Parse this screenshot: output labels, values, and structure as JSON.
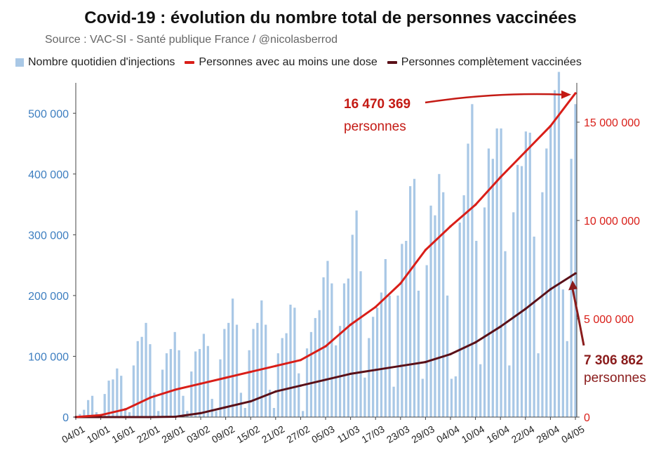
{
  "header": {
    "title": "Covid-19 : évolution du nombre total de personnes vaccinées",
    "source": "Source : VAC-SI - Santé publique France / @nicolasberrod"
  },
  "colors": {
    "bars": "#a9c8e6",
    "first_dose": "#d91e18",
    "full": "#5a1018",
    "left_axis": "#3d7ec0",
    "right_axis": "#d91e18",
    "annot_first": "#c41a14",
    "annot_full": "#8a1c1c"
  },
  "annotations": {
    "first_value": "16 470 369",
    "first_unit": "personnes",
    "full_value": "7 306 862",
    "full_unit": "personnes"
  },
  "chart_data": {
    "type": "bar+line",
    "title": "Covid-19 : évolution du nombre total de personnes vaccinées",
    "subtitle": "Source : VAC-SI - Santé publique France / @nicolasberrod",
    "legend": [
      {
        "label": "Nombre quotidien d'injections",
        "kind": "bar",
        "color": "#a9c8e6"
      },
      {
        "label": "Personnes avec au moins une dose",
        "kind": "line",
        "color": "#d91e18"
      },
      {
        "label": "Personnes complètement vaccinées",
        "kind": "line",
        "color": "#5a1018"
      }
    ],
    "legend_position": "top",
    "x_ticks": [
      "04/01",
      "10/01",
      "16/01",
      "22/01",
      "28/01",
      "03/02",
      "09/02",
      "15/02",
      "21/02",
      "27/02",
      "05/03",
      "11/03",
      "17/03",
      "23/03",
      "29/03",
      "04/04",
      "10/04",
      "16/04",
      "22/04",
      "28/04",
      "04/05"
    ],
    "left_axis": {
      "min": 0,
      "max": 550000,
      "ticks": [
        0,
        100000,
        200000,
        300000,
        400000,
        500000
      ],
      "tick_labels": [
        "0",
        "100 000",
        "200 000",
        "300 000",
        "400 000",
        "500 000"
      ]
    },
    "right_axis": {
      "min": 0,
      "max": 17000000,
      "ticks": [
        0,
        5000000,
        10000000,
        15000000
      ],
      "tick_labels": [
        "0",
        "5 000 000",
        "10 000 000",
        "15 000 000"
      ]
    },
    "daily_injections": [
      1000,
      5000,
      12000,
      28000,
      35000,
      8000,
      2000,
      38000,
      60000,
      62000,
      80000,
      68000,
      15000,
      8000,
      85000,
      125000,
      132000,
      155000,
      120000,
      40000,
      10000,
      78000,
      105000,
      112000,
      140000,
      110000,
      35000,
      10000,
      75000,
      108000,
      112000,
      137000,
      117000,
      30000,
      10000,
      95000,
      145000,
      155000,
      195000,
      152000,
      40000,
      15000,
      110000,
      145000,
      155000,
      192000,
      152000,
      45000,
      15000,
      105000,
      130000,
      138000,
      185000,
      180000,
      72000,
      10000,
      113000,
      140000,
      163000,
      176000,
      230000,
      257000,
      220000,
      118000,
      150000,
      220000,
      228000,
      300000,
      340000,
      240000,
      65000,
      130000,
      165000,
      180000,
      205000,
      260000,
      200000,
      50000,
      200000,
      285000,
      290000,
      380000,
      392000,
      208000,
      63000,
      250000,
      348000,
      332000,
      400000,
      370000,
      200000,
      63000,
      67000,
      320000,
      365000,
      450000,
      515000,
      290000,
      87000,
      345000,
      442000,
      425000,
      475000,
      475000,
      273000,
      85000,
      337000,
      415000,
      413000,
      470000,
      468000,
      297000,
      105000,
      370000,
      442000,
      480000,
      538000,
      568000,
      210000,
      125000,
      425000,
      515000
    ],
    "first_dose_cumulative": [
      {
        "date": "04/01",
        "value": 0
      },
      {
        "date": "10/01",
        "value": 100000
      },
      {
        "date": "16/01",
        "value": 400000
      },
      {
        "date": "22/01",
        "value": 1000000
      },
      {
        "date": "28/01",
        "value": 1400000
      },
      {
        "date": "03/02",
        "value": 1700000
      },
      {
        "date": "09/02",
        "value": 2000000
      },
      {
        "date": "15/02",
        "value": 2300000
      },
      {
        "date": "21/02",
        "value": 2600000
      },
      {
        "date": "27/02",
        "value": 2900000
      },
      {
        "date": "05/03",
        "value": 3600000
      },
      {
        "date": "11/03",
        "value": 4700000
      },
      {
        "date": "17/03",
        "value": 5600000
      },
      {
        "date": "23/03",
        "value": 6800000
      },
      {
        "date": "29/03",
        "value": 8500000
      },
      {
        "date": "04/04",
        "value": 9700000
      },
      {
        "date": "10/04",
        "value": 10800000
      },
      {
        "date": "16/04",
        "value": 12200000
      },
      {
        "date": "22/04",
        "value": 13500000
      },
      {
        "date": "28/04",
        "value": 14800000
      },
      {
        "date": "04/05",
        "value": 16470369
      }
    ],
    "full_cumulative": [
      {
        "date": "04/01",
        "value": 0
      },
      {
        "date": "10/01",
        "value": 0
      },
      {
        "date": "16/01",
        "value": 0
      },
      {
        "date": "22/01",
        "value": 0
      },
      {
        "date": "28/01",
        "value": 20000
      },
      {
        "date": "03/02",
        "value": 200000
      },
      {
        "date": "09/02",
        "value": 500000
      },
      {
        "date": "15/02",
        "value": 800000
      },
      {
        "date": "21/02",
        "value": 1300000
      },
      {
        "date": "27/02",
        "value": 1600000
      },
      {
        "date": "05/03",
        "value": 1900000
      },
      {
        "date": "11/03",
        "value": 2200000
      },
      {
        "date": "17/03",
        "value": 2400000
      },
      {
        "date": "23/03",
        "value": 2600000
      },
      {
        "date": "29/03",
        "value": 2800000
      },
      {
        "date": "04/04",
        "value": 3200000
      },
      {
        "date": "10/04",
        "value": 3800000
      },
      {
        "date": "16/04",
        "value": 4600000
      },
      {
        "date": "22/04",
        "value": 5500000
      },
      {
        "date": "28/04",
        "value": 6500000
      },
      {
        "date": "04/05",
        "value": 7306862
      }
    ]
  }
}
